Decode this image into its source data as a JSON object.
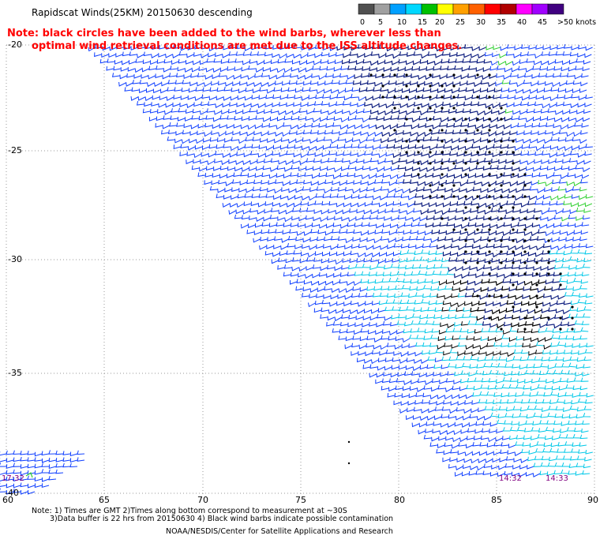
{
  "header": {
    "title": "Rapidscat Winds(25KM) 20150630 descending"
  },
  "note": {
    "line1": "Note: black circles have been added to the wind barbs, wherever less than",
    "line2": "optimal wind retrieval conditions are met due to the ISS altitude changes."
  },
  "legend": {
    "ticks": [
      "0",
      "5",
      "10",
      "15",
      "20",
      "25",
      "30",
      "35",
      "40",
      "45",
      ">50 knots"
    ],
    "colors": [
      "#505050",
      "#a0a0a0",
      "#00a0ff",
      "#00d8ff",
      "#00c000",
      "#ffff00",
      "#ffa000",
      "#ff6000",
      "#ff0000",
      "#b00000",
      "#ff00ff",
      "#a000ff",
      "#400080"
    ]
  },
  "axes": {
    "lat_labels": [
      "-20",
      "-25",
      "-30",
      "-35",
      "-40"
    ],
    "lon_labels": [
      "60",
      "65",
      "70",
      "75",
      "80",
      "85",
      "90"
    ]
  },
  "times": {
    "left": "17:32",
    "t1": "14:32",
    "t2": "14:33"
  },
  "footer": {
    "line1": "Note: 1) Times are GMT 2)Times along bottom correspond to measurement at ~30S",
    "line2": "3)Data buffer is 22 hrs from 20150630 4) Black wind barbs indicate possible contamination",
    "credit": "NOAA/NESDIS/Center for Satellite Applications and Research"
  },
  "colors": {
    "low": "#00c8e8",
    "mid": "#1040ff",
    "navy": "#102080",
    "green": "#30d030",
    "contam": "#000000",
    "note": "#ff0000",
    "time": "#800080"
  }
}
